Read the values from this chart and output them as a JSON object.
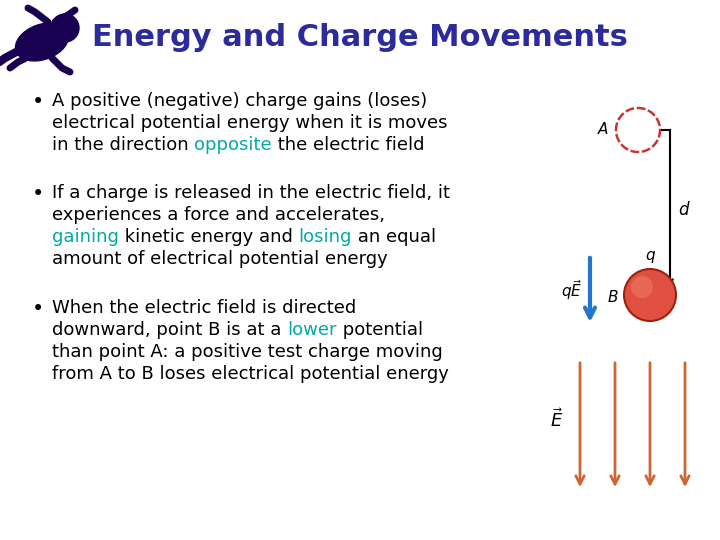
{
  "title": "Energy and Charge Movements",
  "title_color": "#2B2B9B",
  "title_fontsize": 22,
  "background_color": "#FFFFFF",
  "bullet_fontsize": 13,
  "bullet_color": "#000000",
  "highlight_color": "#00AAAA",
  "bullet1_line1": "A positive (negative) charge gains (loses)",
  "bullet1_line2": "electrical potential energy when it is moves",
  "bullet1_line3_pre": "in the direction ",
  "bullet1_line3_highlight": "opposite",
  "bullet1_line3_post": " the electric field",
  "bullet2_line1": "If a charge is released in the electric field, it",
  "bullet2_line2": "experiences a force and accelerates,",
  "bullet2_line3_pre": "",
  "bullet2_line3_h1": "gaining",
  "bullet2_line3_mid": " kinetic energy and ",
  "bullet2_line3_h2": "losing",
  "bullet2_line3_post": " an equal",
  "bullet2_line4": "amount of electrical potential energy",
  "bullet3_line1": "When the electric field is directed",
  "bullet3_line2_pre": "downward, point B is at a ",
  "bullet3_line2_h": "lower",
  "bullet3_line2_post": " potential",
  "bullet3_line3": "than point A: a positive test charge moving",
  "bullet3_line4": "from A to B loses electrical potential energy",
  "diagram_color_A": "#CC3333",
  "sphere_face": "#E05040",
  "sphere_edge": "#A02010",
  "arrow_blue": "#2277CC",
  "efield_color": "#CC6633",
  "black": "#000000"
}
